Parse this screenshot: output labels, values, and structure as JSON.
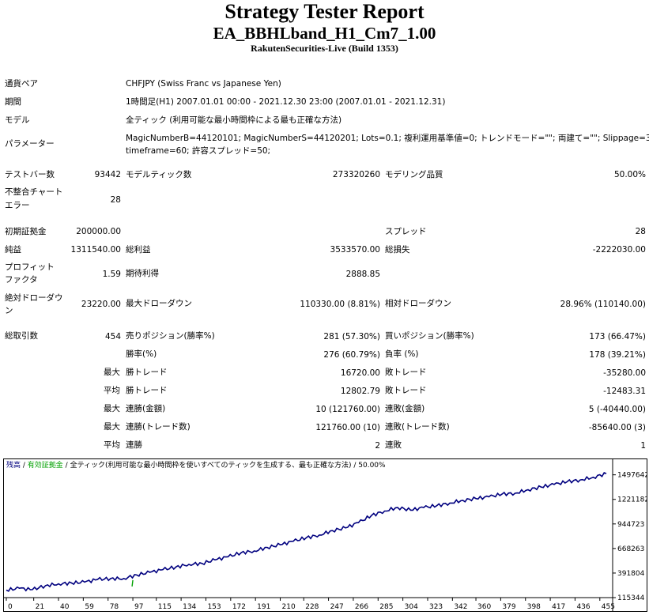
{
  "header": {
    "title": "Strategy Tester Report",
    "ea_name": "EA_BBHLband_H1_Cm7_1.00",
    "server": "RakutenSecurities-Live (Build 1353)"
  },
  "settings": {
    "symbol_label": "通貨ペア",
    "symbol_value": "CHFJPY (Swiss Franc vs Japanese Yen)",
    "period_label": "期間",
    "period_value": "1時間足(H1) 2007.01.01 00:00 - 2021.12.30 23:00 (2007.01.01 - 2021.12.31)",
    "model_label": "モデル",
    "model_value": "全ティック (利用可能な最小時間枠による最も正確な方法)",
    "params_label": "パラメーター",
    "params_line1": "MagicNumberB=44120101; MagicNumberS=44120201; Lots=0.1; 複利運用基準値=0; トレンドモード=\"\"; 両建て=\"\"; Slippage=3;",
    "params_line2": "timeframe=60; 許容スプレッド=50;"
  },
  "stats": {
    "bars_label": "テストバー数",
    "bars_value": "93442",
    "ticks_label": "モデルティック数",
    "ticks_value": "273320260",
    "quality_label": "モデリング品質",
    "quality_value": "50.00%",
    "mismatch_label_1": "不整合チャート",
    "mismatch_label_2": "エラー",
    "mismatch_value": "28",
    "deposit_label": "初期証拠金",
    "deposit_value": "200000.00",
    "spread_label": "スプレッド",
    "spread_value": "28",
    "net_label": "純益",
    "net_value": "1311540.00",
    "gross_profit_label": "総利益",
    "gross_profit_value": "3533570.00",
    "gross_loss_label": "総損失",
    "gross_loss_value": "-2222030.00",
    "pf_label_1": "プロフィット",
    "pf_label_2": "ファクタ",
    "pf_value": "1.59",
    "expected_label": "期待利得",
    "expected_value": "2888.85",
    "abs_dd_label_1": "絶対ドローダウ",
    "abs_dd_label_2": "ン",
    "abs_dd_value": "23220.00",
    "max_dd_label": "最大ドローダウン",
    "max_dd_value": "110330.00 (8.81%)",
    "rel_dd_label": "相対ドローダウン",
    "rel_dd_value": "28.96% (110140.00)",
    "trades_label": "総取引数",
    "trades_value": "454",
    "short_label": "売りポジション(勝率%)",
    "short_value": "281 (57.30%)",
    "long_label": "買いポジション(勝率%)",
    "long_value": "173 (66.47%)",
    "win_label": "勝率(%)",
    "win_value": "276 (60.79%)",
    "loss_label": "負率 (%)",
    "loss_value": "178 (39.21%)",
    "largest_prefix": "最大",
    "largest_win_label": "勝トレード",
    "largest_win_value": "16720.00",
    "largest_loss_label": "敗トレード",
    "largest_loss_value": "-35280.00",
    "average_prefix": "平均",
    "avg_win_label": "勝トレード",
    "avg_win_value": "12802.79",
    "avg_loss_label": "敗トレード",
    "avg_loss_value": "-12483.31",
    "max_consec_prefix_1": "最大",
    "max_consec_wins_label": "連勝(金額)",
    "max_consec_wins_value": "10 (121760.00)",
    "max_consec_losses_label": "連敗(金額)",
    "max_consec_losses_value": "5 (-40440.00)",
    "max_consec_prefix_2": "最大",
    "max_consec_profit_label": "連勝(トレード数)",
    "max_consec_profit_value": "121760.00 (10)",
    "max_consec_loss_label": "連敗(トレード数)",
    "max_consec_loss_value": "-85640.00 (3)",
    "avg_consec_prefix": "平均",
    "avg_consec_wins_label": "連勝",
    "avg_consec_wins_value": "2",
    "avg_consec_losses_label": "連敗",
    "avg_consec_losses_value": "1"
  },
  "chart_legend": {
    "balance": "残高",
    "sep1": " / ",
    "margin": "有効証拠金",
    "sep2": " / ",
    "rest": "全ティック(利用可能な最小時間枠を使いすべてのティックを生成する、最も正確な方法) / 50.00%"
  },
  "colors": {
    "balance_line": "#00007f",
    "margin_line": "#00a000",
    "chart_border": "#000000"
  },
  "chart_data": {
    "type": "line",
    "title": "",
    "x_ticks": [
      0,
      21,
      40,
      59,
      78,
      97,
      115,
      134,
      153,
      172,
      191,
      210,
      228,
      247,
      266,
      285,
      304,
      323,
      342,
      360,
      379,
      398,
      417,
      436,
      455
    ],
    "y_ticks": [
      115344,
      391804,
      668263,
      944723,
      1221182,
      1497642
    ],
    "xlim": [
      0,
      463
    ],
    "ylim": [
      115344,
      1557000
    ],
    "series": [
      {
        "name": "残高",
        "x": [
          0,
          10,
          20,
          30,
          40,
          50,
          60,
          70,
          80,
          90,
          100,
          110,
          120,
          130,
          140,
          150,
          160,
          170,
          180,
          190,
          200,
          210,
          220,
          230,
          240,
          250,
          260,
          270,
          280,
          290,
          300,
          310,
          320,
          330,
          340,
          350,
          360,
          370,
          380,
          390,
          400,
          410,
          420,
          430,
          440,
          450,
          460
        ],
        "y": [
          200000,
          220000,
          205000,
          250000,
          270000,
          280000,
          290000,
          320000,
          330000,
          330000,
          370000,
          400000,
          430000,
          460000,
          490000,
          500000,
          540000,
          575000,
          620000,
          640000,
          680000,
          710000,
          750000,
          790000,
          820000,
          870000,
          900000,
          960000,
          1040000,
          1090000,
          1130000,
          1100000,
          1130000,
          1150000,
          1180000,
          1210000,
          1230000,
          1250000,
          1280000,
          1290000,
          1330000,
          1360000,
          1390000,
          1420000,
          1440000,
          1470000,
          1511540
        ]
      }
    ]
  }
}
